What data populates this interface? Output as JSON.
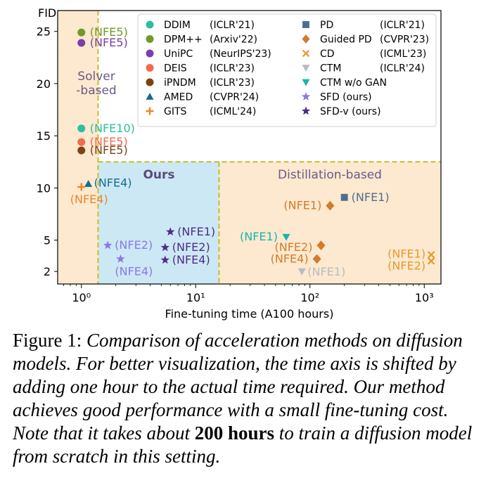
{
  "chart_data": {
    "type": "scatter",
    "xlabel": "Fine-tuning time (A100 hours)",
    "ylabel": "FID",
    "xscale": "log",
    "xlim": [
      0.62,
      1400
    ],
    "ylim": [
      0.8,
      27
    ],
    "x_ticks": [
      {
        "value": 1,
        "label": "10⁰"
      },
      {
        "value": 10,
        "label": "10¹"
      },
      {
        "value": 100,
        "label": "10²"
      },
      {
        "value": 1000,
        "label": "10³"
      }
    ],
    "y_ticks": [
      2,
      5,
      10,
      15,
      20,
      25
    ],
    "grid": false,
    "regions": [
      {
        "label": "Solver\n-based",
        "x": [
          0.62,
          1.4
        ],
        "y": [
          0.8,
          27
        ],
        "color": "#fce9cf"
      },
      {
        "label": "Ours",
        "x": [
          1.4,
          16
        ],
        "y": [
          0.8,
          12.5
        ],
        "color": "#cde8f5"
      },
      {
        "label": "Distillation-based",
        "x": [
          16,
          1400
        ],
        "y": [
          0.8,
          12.5
        ],
        "color": "#fce9cf"
      }
    ],
    "series": [
      {
        "name": "DDIM",
        "venue": "(ICLR'21)",
        "marker": "circle",
        "color": "#2bbf9e",
        "points": [
          {
            "x": 1,
            "y": 15.7,
            "label": "(NFE10)"
          }
        ]
      },
      {
        "name": "DPM++",
        "venue": "(Arxiv'22)",
        "marker": "circle",
        "color": "#6f9a25",
        "points": [
          {
            "x": 1,
            "y": 24.9,
            "label": "(NFE5)"
          }
        ]
      },
      {
        "name": "UniPC",
        "venue": "(NeurIPS'23)",
        "marker": "circle",
        "color": "#7b3fa8",
        "points": [
          {
            "x": 1,
            "y": 23.9,
            "label": "(NFE5)"
          }
        ]
      },
      {
        "name": "DEIS",
        "venue": "(ICLR'23)",
        "marker": "circle",
        "color": "#ef6a4f",
        "points": [
          {
            "x": 1,
            "y": 14.4,
            "label": "(NFE5)"
          }
        ]
      },
      {
        "name": "iPNDM",
        "venue": "(ICLR'23)",
        "marker": "circle",
        "color": "#7a4314",
        "points": [
          {
            "x": 1,
            "y": 13.6,
            "label": "(NFE5)"
          }
        ]
      },
      {
        "name": "AMED",
        "venue": "(CVPR'24)",
        "marker": "triangle-up",
        "color": "#146e87",
        "points": [
          {
            "x": 1.15,
            "y": 10.4,
            "label": "(NFE4)"
          }
        ]
      },
      {
        "name": "GITS",
        "venue": "(ICML'24)",
        "marker": "plus",
        "color": "#e9872a",
        "points": [
          {
            "x": 1,
            "y": 10.1,
            "label": "(NFE4)"
          }
        ]
      },
      {
        "name": "PD",
        "venue": "(ICLR'21)",
        "marker": "square",
        "color": "#4e6e8f",
        "points": [
          {
            "x": 200,
            "y": 9.1,
            "label": "(NFE1)"
          }
        ]
      },
      {
        "name": "Guided PD",
        "venue": "(CVPR'23)",
        "marker": "diamond",
        "color": "#d27b2c",
        "points": [
          {
            "x": 150,
            "y": 8.3,
            "label": "(NFE1)"
          },
          {
            "x": 125,
            "y": 4.5,
            "label": "(NFE2)"
          },
          {
            "x": 115,
            "y": 3.2,
            "label": "(NFE4)"
          }
        ]
      },
      {
        "name": "CD",
        "venue": "(ICML'23)",
        "marker": "x",
        "color": "#e9982a",
        "points": [
          {
            "x": 1150,
            "y": 3.6,
            "label": "(NFE1)"
          },
          {
            "x": 1150,
            "y": 3.0,
            "label": "(NFE2)"
          }
        ]
      },
      {
        "name": "CTM",
        "venue": "(ICLR'24)",
        "marker": "triangle-down",
        "color": "#b8bcbf",
        "points": [
          {
            "x": 85,
            "y": 2.0,
            "label": "(NFE1)"
          }
        ]
      },
      {
        "name": "CTM w/o GAN",
        "venue": "",
        "marker": "triangle-down",
        "color": "#1ab4ad",
        "points": [
          {
            "x": 62,
            "y": 5.3,
            "label": "(NFE1)"
          }
        ]
      },
      {
        "name": "SFD (ours)",
        "venue": "",
        "marker": "star",
        "color": "#8a78e6",
        "points": [
          {
            "x": 1.7,
            "y": 4.5,
            "label": "(NFE2)"
          },
          {
            "x": 2.2,
            "y": 3.2,
            "label": "(NFE4)"
          }
        ]
      },
      {
        "name": "SFD-v (ours)",
        "venue": "",
        "marker": "star",
        "color": "#4d2c87",
        "points": [
          {
            "x": 6.0,
            "y": 5.8,
            "label": "(NFE1)"
          },
          {
            "x": 5.4,
            "y": 4.3,
            "label": "(NFE2)"
          },
          {
            "x": 5.4,
            "y": 3.1,
            "label": "(NFE4)"
          }
        ]
      }
    ]
  },
  "caption": {
    "figure_label": "Figure 1:",
    "text_before": "Comparison of acceleration methods on diffusion models. For better visualization, the time axis is shifted by adding one hour to the actual time required. Our method achieves good performance with a small fine-tuning cost. Note that it takes about",
    "emphasis": "200 hours",
    "text_after": "to train a diffusion model from scratch in this setting."
  }
}
